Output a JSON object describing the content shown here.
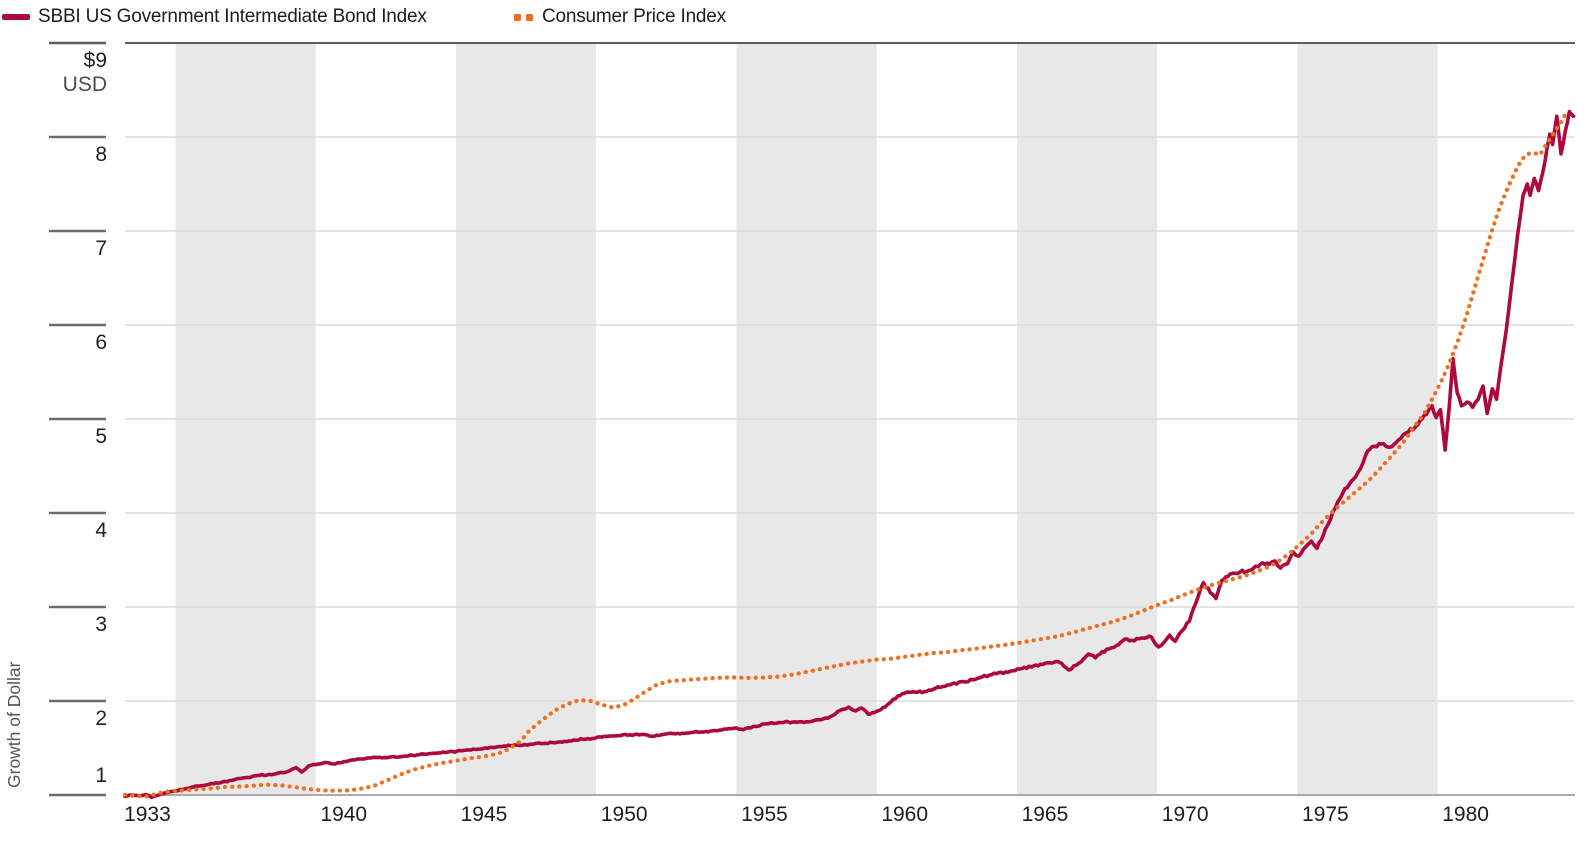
{
  "legend": {
    "items": [
      {
        "label": "SBBI US Government Intermediate Bond Index",
        "color": "#AC0A3C",
        "style": "solid"
      },
      {
        "label": "Consumer Price Index",
        "color": "#EF6F20",
        "style": "dotted"
      }
    ]
  },
  "y_axis": {
    "currency_label": "$9",
    "currency_sub": "USD",
    "title": "Growth of Dollar",
    "tick_labels": [
      "1",
      "2",
      "3",
      "4",
      "5",
      "6",
      "7",
      "8"
    ]
  },
  "x_axis": {
    "tick_labels": [
      "1933",
      "1940",
      "1945",
      "1950",
      "1955",
      "1960",
      "1965",
      "1970",
      "1975",
      "1980"
    ]
  },
  "chart_data": {
    "type": "line",
    "ylabel": "Growth of Dollar",
    "y_unit": "USD",
    "x_domain": [
      1932.2,
      1983.9
    ],
    "y_domain": [
      1,
      9
    ],
    "y_ticks": [
      1,
      2,
      3,
      4,
      5,
      6,
      7,
      8,
      9
    ],
    "x_ticks": [
      1933,
      1940,
      1945,
      1950,
      1955,
      1960,
      1965,
      1970,
      1975,
      1980
    ],
    "grid": "horizontal",
    "band_color": "#E8E8E8",
    "shaded_bands": [
      [
        1934,
        1939
      ],
      [
        1944,
        1949
      ],
      [
        1954,
        1959
      ],
      [
        1964,
        1969
      ],
      [
        1974,
        1979
      ]
    ],
    "series": [
      {
        "name": "SBBI US Government Intermediate Bond Index",
        "color": "#AC0A3C",
        "line_style": "solid",
        "end_value": 8.2,
        "points": [
          [
            1932.2,
            0.985
          ],
          [
            1932.45,
            1.0
          ],
          [
            1932.7,
            0.99
          ],
          [
            1932.95,
            1.005
          ],
          [
            1933.15,
            0.975
          ],
          [
            1933.4,
            1.0
          ],
          [
            1933.7,
            1.025
          ],
          [
            1934.0,
            1.045
          ],
          [
            1934.4,
            1.07
          ],
          [
            1934.8,
            1.095
          ],
          [
            1935.2,
            1.115
          ],
          [
            1935.6,
            1.13
          ],
          [
            1936.0,
            1.155
          ],
          [
            1936.5,
            1.185
          ],
          [
            1937.0,
            1.21
          ],
          [
            1937.5,
            1.22
          ],
          [
            1938.0,
            1.25
          ],
          [
            1938.3,
            1.29
          ],
          [
            1938.5,
            1.245
          ],
          [
            1938.75,
            1.31
          ],
          [
            1939.1,
            1.33
          ],
          [
            1939.4,
            1.345
          ],
          [
            1939.7,
            1.33
          ],
          [
            1940.0,
            1.355
          ],
          [
            1940.4,
            1.375
          ],
          [
            1940.8,
            1.39
          ],
          [
            1941.2,
            1.4
          ],
          [
            1941.7,
            1.405
          ],
          [
            1942.2,
            1.415
          ],
          [
            1942.7,
            1.43
          ],
          [
            1943.2,
            1.445
          ],
          [
            1943.7,
            1.455
          ],
          [
            1944.2,
            1.47
          ],
          [
            1944.7,
            1.485
          ],
          [
            1945.2,
            1.505
          ],
          [
            1945.7,
            1.52
          ],
          [
            1946.2,
            1.53
          ],
          [
            1946.7,
            1.54
          ],
          [
            1947.2,
            1.55
          ],
          [
            1947.7,
            1.565
          ],
          [
            1948.2,
            1.585
          ],
          [
            1948.7,
            1.6
          ],
          [
            1949.2,
            1.615
          ],
          [
            1949.7,
            1.63
          ],
          [
            1950.2,
            1.64
          ],
          [
            1950.7,
            1.645
          ],
          [
            1951.0,
            1.625
          ],
          [
            1951.4,
            1.645
          ],
          [
            1951.9,
            1.655
          ],
          [
            1952.4,
            1.665
          ],
          [
            1952.9,
            1.675
          ],
          [
            1953.4,
            1.69
          ],
          [
            1953.9,
            1.71
          ],
          [
            1954.25,
            1.695
          ],
          [
            1954.6,
            1.73
          ],
          [
            1955.0,
            1.755
          ],
          [
            1955.5,
            1.77
          ],
          [
            1956.0,
            1.775
          ],
          [
            1956.5,
            1.78
          ],
          [
            1957.0,
            1.8
          ],
          [
            1957.35,
            1.835
          ],
          [
            1957.7,
            1.9
          ],
          [
            1958.0,
            1.935
          ],
          [
            1958.25,
            1.895
          ],
          [
            1958.45,
            1.925
          ],
          [
            1958.7,
            1.86
          ],
          [
            1959.0,
            1.89
          ],
          [
            1959.3,
            1.935
          ],
          [
            1959.6,
            2.02
          ],
          [
            1959.9,
            2.075
          ],
          [
            1960.3,
            2.1
          ],
          [
            1960.7,
            2.1
          ],
          [
            1961.1,
            2.135
          ],
          [
            1961.6,
            2.17
          ],
          [
            1962.1,
            2.205
          ],
          [
            1962.6,
            2.24
          ],
          [
            1963.1,
            2.28
          ],
          [
            1963.6,
            2.31
          ],
          [
            1964.1,
            2.34
          ],
          [
            1964.6,
            2.375
          ],
          [
            1965.0,
            2.4
          ],
          [
            1965.5,
            2.415
          ],
          [
            1965.85,
            2.33
          ],
          [
            1966.2,
            2.4
          ],
          [
            1966.55,
            2.5
          ],
          [
            1966.8,
            2.46
          ],
          [
            1967.2,
            2.55
          ],
          [
            1967.55,
            2.59
          ],
          [
            1967.85,
            2.66
          ],
          [
            1968.1,
            2.645
          ],
          [
            1968.45,
            2.67
          ],
          [
            1968.8,
            2.68
          ],
          [
            1969.05,
            2.575
          ],
          [
            1969.25,
            2.625
          ],
          [
            1969.45,
            2.7
          ],
          [
            1969.65,
            2.635
          ],
          [
            1969.9,
            2.75
          ],
          [
            1970.15,
            2.85
          ],
          [
            1970.45,
            3.1
          ],
          [
            1970.65,
            3.26
          ],
          [
            1970.9,
            3.15
          ],
          [
            1971.1,
            3.09
          ],
          [
            1971.3,
            3.28
          ],
          [
            1971.6,
            3.35
          ],
          [
            1971.95,
            3.37
          ],
          [
            1972.3,
            3.39
          ],
          [
            1972.6,
            3.43
          ],
          [
            1972.75,
            3.47
          ],
          [
            1973.0,
            3.455
          ],
          [
            1973.2,
            3.49
          ],
          [
            1973.4,
            3.415
          ],
          [
            1973.65,
            3.46
          ],
          [
            1973.85,
            3.585
          ],
          [
            1974.05,
            3.54
          ],
          [
            1974.3,
            3.64
          ],
          [
            1974.5,
            3.7
          ],
          [
            1974.7,
            3.625
          ],
          [
            1975.0,
            3.83
          ],
          [
            1975.35,
            4.05
          ],
          [
            1975.7,
            4.26
          ],
          [
            1976.0,
            4.36
          ],
          [
            1976.25,
            4.47
          ],
          [
            1976.5,
            4.66
          ],
          [
            1976.75,
            4.71
          ],
          [
            1977.0,
            4.735
          ],
          [
            1977.3,
            4.7
          ],
          [
            1977.6,
            4.775
          ],
          [
            1977.95,
            4.86
          ],
          [
            1978.3,
            4.94
          ],
          [
            1978.6,
            5.05
          ],
          [
            1978.8,
            5.14
          ],
          [
            1978.95,
            5.015
          ],
          [
            1979.1,
            5.1
          ],
          [
            1979.27,
            4.67
          ],
          [
            1979.42,
            5.15
          ],
          [
            1979.55,
            5.64
          ],
          [
            1979.7,
            5.28
          ],
          [
            1979.85,
            5.14
          ],
          [
            1980.05,
            5.18
          ],
          [
            1980.25,
            5.125
          ],
          [
            1980.45,
            5.21
          ],
          [
            1980.62,
            5.35
          ],
          [
            1980.77,
            5.06
          ],
          [
            1980.95,
            5.32
          ],
          [
            1981.1,
            5.21
          ],
          [
            1981.25,
            5.55
          ],
          [
            1981.45,
            5.95
          ],
          [
            1981.65,
            6.45
          ],
          [
            1981.85,
            6.95
          ],
          [
            1982.05,
            7.38
          ],
          [
            1982.2,
            7.5
          ],
          [
            1982.3,
            7.38
          ],
          [
            1982.45,
            7.56
          ],
          [
            1982.6,
            7.43
          ],
          [
            1982.75,
            7.62
          ],
          [
            1982.9,
            7.88
          ],
          [
            1983.0,
            8.03
          ],
          [
            1983.1,
            7.92
          ],
          [
            1983.25,
            8.22
          ],
          [
            1983.4,
            7.82
          ],
          [
            1983.55,
            8.06
          ],
          [
            1983.7,
            8.27
          ],
          [
            1983.85,
            8.22
          ]
        ]
      },
      {
        "name": "Consumer Price Index",
        "color": "#EF6F20",
        "line_style": "dotted",
        "end_value": 8.27,
        "points": [
          [
            1932.2,
            1.0
          ],
          [
            1932.6,
            0.99
          ],
          [
            1933.0,
            0.985
          ],
          [
            1933.4,
            1.02
          ],
          [
            1933.8,
            1.04
          ],
          [
            1934.3,
            1.05
          ],
          [
            1934.8,
            1.06
          ],
          [
            1935.3,
            1.07
          ],
          [
            1935.8,
            1.085
          ],
          [
            1936.3,
            1.09
          ],
          [
            1936.8,
            1.1
          ],
          [
            1937.2,
            1.11
          ],
          [
            1937.7,
            1.105
          ],
          [
            1938.2,
            1.085
          ],
          [
            1938.7,
            1.065
          ],
          [
            1939.2,
            1.05
          ],
          [
            1939.7,
            1.045
          ],
          [
            1940.2,
            1.05
          ],
          [
            1940.7,
            1.07
          ],
          [
            1941.1,
            1.1
          ],
          [
            1941.5,
            1.15
          ],
          [
            1942.0,
            1.215
          ],
          [
            1942.5,
            1.27
          ],
          [
            1943.0,
            1.31
          ],
          [
            1943.5,
            1.34
          ],
          [
            1944.0,
            1.365
          ],
          [
            1944.5,
            1.39
          ],
          [
            1945.0,
            1.41
          ],
          [
            1945.5,
            1.44
          ],
          [
            1945.9,
            1.49
          ],
          [
            1946.3,
            1.57
          ],
          [
            1946.6,
            1.68
          ],
          [
            1947.0,
            1.78
          ],
          [
            1947.35,
            1.86
          ],
          [
            1947.7,
            1.93
          ],
          [
            1948.0,
            1.97
          ],
          [
            1948.4,
            2.01
          ],
          [
            1948.8,
            2.0
          ],
          [
            1949.2,
            1.96
          ],
          [
            1949.6,
            1.93
          ],
          [
            1950.0,
            1.96
          ],
          [
            1950.4,
            2.03
          ],
          [
            1950.8,
            2.11
          ],
          [
            1951.2,
            2.18
          ],
          [
            1951.6,
            2.21
          ],
          [
            1952.0,
            2.22
          ],
          [
            1952.5,
            2.23
          ],
          [
            1953.0,
            2.24
          ],
          [
            1953.5,
            2.25
          ],
          [
            1954.0,
            2.25
          ],
          [
            1954.5,
            2.245
          ],
          [
            1955.0,
            2.25
          ],
          [
            1955.5,
            2.26
          ],
          [
            1956.0,
            2.28
          ],
          [
            1956.5,
            2.31
          ],
          [
            1957.0,
            2.34
          ],
          [
            1957.5,
            2.37
          ],
          [
            1958.0,
            2.4
          ],
          [
            1958.5,
            2.42
          ],
          [
            1959.0,
            2.44
          ],
          [
            1959.5,
            2.45
          ],
          [
            1960.0,
            2.47
          ],
          [
            1960.5,
            2.49
          ],
          [
            1961.0,
            2.51
          ],
          [
            1961.5,
            2.52
          ],
          [
            1962.0,
            2.54
          ],
          [
            1962.5,
            2.555
          ],
          [
            1963.0,
            2.575
          ],
          [
            1963.5,
            2.595
          ],
          [
            1964.0,
            2.615
          ],
          [
            1964.5,
            2.64
          ],
          [
            1965.0,
            2.665
          ],
          [
            1965.5,
            2.69
          ],
          [
            1966.0,
            2.73
          ],
          [
            1966.5,
            2.77
          ],
          [
            1967.0,
            2.81
          ],
          [
            1967.5,
            2.85
          ],
          [
            1968.0,
            2.9
          ],
          [
            1968.5,
            2.96
          ],
          [
            1969.0,
            3.02
          ],
          [
            1969.5,
            3.075
          ],
          [
            1970.0,
            3.135
          ],
          [
            1970.5,
            3.19
          ],
          [
            1971.0,
            3.24
          ],
          [
            1971.5,
            3.28
          ],
          [
            1972.0,
            3.32
          ],
          [
            1972.5,
            3.37
          ],
          [
            1973.0,
            3.43
          ],
          [
            1973.4,
            3.5
          ],
          [
            1973.8,
            3.59
          ],
          [
            1974.1,
            3.67
          ],
          [
            1974.5,
            3.78
          ],
          [
            1974.8,
            3.88
          ],
          [
            1975.1,
            3.97
          ],
          [
            1975.5,
            4.08
          ],
          [
            1975.9,
            4.18
          ],
          [
            1976.3,
            4.28
          ],
          [
            1976.7,
            4.39
          ],
          [
            1977.0,
            4.49
          ],
          [
            1977.4,
            4.62
          ],
          [
            1977.8,
            4.76
          ],
          [
            1978.1,
            4.89
          ],
          [
            1978.5,
            5.05
          ],
          [
            1978.8,
            5.21
          ],
          [
            1979.1,
            5.38
          ],
          [
            1979.4,
            5.58
          ],
          [
            1979.7,
            5.81
          ],
          [
            1980.0,
            6.07
          ],
          [
            1980.3,
            6.37
          ],
          [
            1980.6,
            6.67
          ],
          [
            1980.9,
            6.97
          ],
          [
            1981.2,
            7.24
          ],
          [
            1981.5,
            7.46
          ],
          [
            1981.8,
            7.65
          ],
          [
            1982.0,
            7.76
          ],
          [
            1982.2,
            7.82
          ],
          [
            1982.45,
            7.83
          ],
          [
            1982.65,
            7.81
          ],
          [
            1982.85,
            7.91
          ],
          [
            1983.05,
            8.0
          ],
          [
            1983.25,
            8.09
          ],
          [
            1983.45,
            8.18
          ],
          [
            1983.6,
            8.27
          ]
        ]
      }
    ]
  }
}
